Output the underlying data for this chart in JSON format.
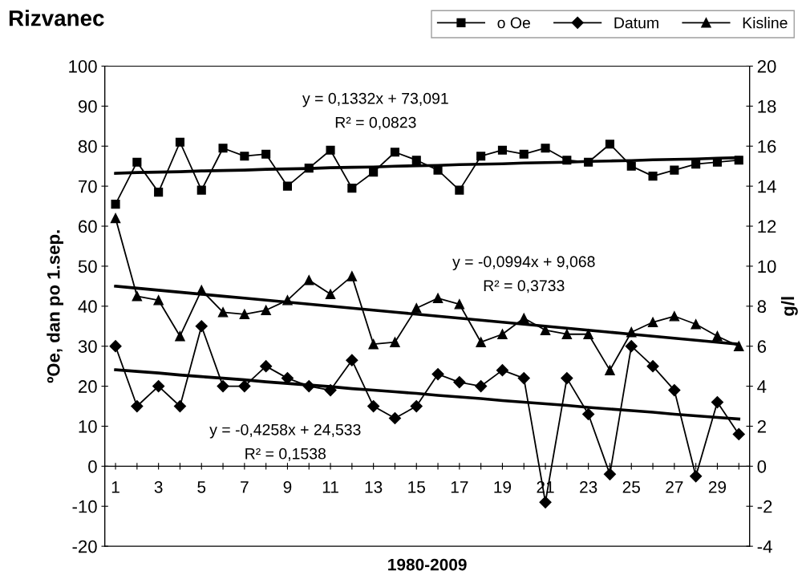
{
  "chart_data": {
    "type": "line",
    "title": "Rizvanec",
    "xlabel": "1980-2009",
    "ylabel": "ºOe, dan po 1.sep.",
    "y2label": "g/l",
    "categories": [
      "1",
      null,
      "3",
      null,
      "5",
      null,
      "7",
      null,
      "9",
      null,
      "11",
      null,
      "13",
      null,
      "15",
      null,
      "17",
      null,
      "19",
      null,
      "21",
      null,
      "23",
      null,
      "25",
      null,
      "27",
      null,
      "29",
      null
    ],
    "series": [
      {
        "name": "o Oe",
        "color": "#000000",
        "marker": "square",
        "values": [
          65.5,
          76,
          68.5,
          81,
          69,
          79.5,
          77.5,
          78,
          70,
          74.5,
          79,
          69.5,
          73.5,
          78.5,
          76.5,
          74,
          69,
          77.5,
          79,
          78,
          79.5,
          76.5,
          76,
          80.5,
          75,
          72.5,
          74,
          75.5,
          76,
          76.5
        ]
      },
      {
        "name": "Datum",
        "color": "#000000",
        "marker": "diamond",
        "values": [
          30,
          15,
          20,
          15,
          35,
          20,
          20,
          25,
          22,
          20,
          19,
          26.5,
          15,
          12,
          15,
          23,
          21,
          20,
          24,
          22,
          -9,
          22,
          13,
          -2,
          30,
          25,
          19,
          -2.5,
          16,
          8
        ]
      },
      {
        "name": "Kisline",
        "color": "#000000",
        "marker": "triangle",
        "axis": "y2",
        "values": [
          12.4,
          8.5,
          8.3,
          6.5,
          8.8,
          7.7,
          7.6,
          7.8,
          8.3,
          9.3,
          8.6,
          9.5,
          6.1,
          6.2,
          7.9,
          8.4,
          8.1,
          6.2,
          6.6,
          7.4,
          6.8,
          6.6,
          6.6,
          4.8,
          6.7,
          7.2,
          7.5,
          7.1,
          6.5,
          6.0
        ]
      },
      {
        "type": "line",
        "color": "#000000",
        "marker": "none",
        "values": [
          73.2,
          73.4,
          73.5,
          73.6,
          73.8,
          73.9,
          74.0,
          74.2,
          74.3,
          74.4,
          74.6,
          74.7,
          74.8,
          75.0,
          75.1,
          75.2,
          75.4,
          75.5,
          75.6,
          75.8,
          75.9,
          76.0,
          76.2,
          76.3,
          76.4,
          76.6,
          76.7,
          76.8,
          77.0,
          77.1
        ]
      },
      {
        "type": "line",
        "color": "#000000",
        "marker": "none",
        "values": [
          24.1,
          23.7,
          23.3,
          22.8,
          22.4,
          22.0,
          21.6,
          21.1,
          20.7,
          20.3,
          19.9,
          19.4,
          19.0,
          18.6,
          18.2,
          17.7,
          17.3,
          16.9,
          16.4,
          16.0,
          15.6,
          15.2,
          14.7,
          14.3,
          13.9,
          13.5,
          13.0,
          12.6,
          12.2,
          11.8
        ]
      },
      {
        "type": "line",
        "color": "#000000",
        "marker": "none",
        "axis": "y2",
        "values": [
          9.0,
          8.9,
          8.8,
          8.7,
          8.6,
          8.5,
          8.4,
          8.3,
          8.2,
          8.1,
          8.0,
          7.9,
          7.8,
          7.7,
          7.6,
          7.5,
          7.4,
          7.3,
          7.2,
          7.1,
          7.0,
          6.9,
          6.8,
          6.7,
          6.6,
          6.5,
          6.4,
          6.3,
          6.2,
          6.1
        ]
      }
    ],
    "ylim": [
      -20,
      100
    ],
    "yticks": [
      -20,
      -10,
      0,
      10,
      20,
      30,
      40,
      50,
      60,
      70,
      80,
      90,
      100
    ],
    "y2lim": [
      -4,
      20
    ],
    "y2ticks": [
      -4,
      -2,
      0,
      2,
      4,
      6,
      8,
      10,
      12,
      14,
      16,
      18,
      20
    ],
    "annotations": [
      "y = 0,1332x + 73,091",
      "R² = 0,0823",
      "y = -0,0994x + 9,068",
      "R² = 0,3733",
      "y = -0,4258x + 24,533",
      "R² = 0,1538"
    ],
    "grid": false,
    "legend": "top right",
    "line_style": "solid"
  }
}
